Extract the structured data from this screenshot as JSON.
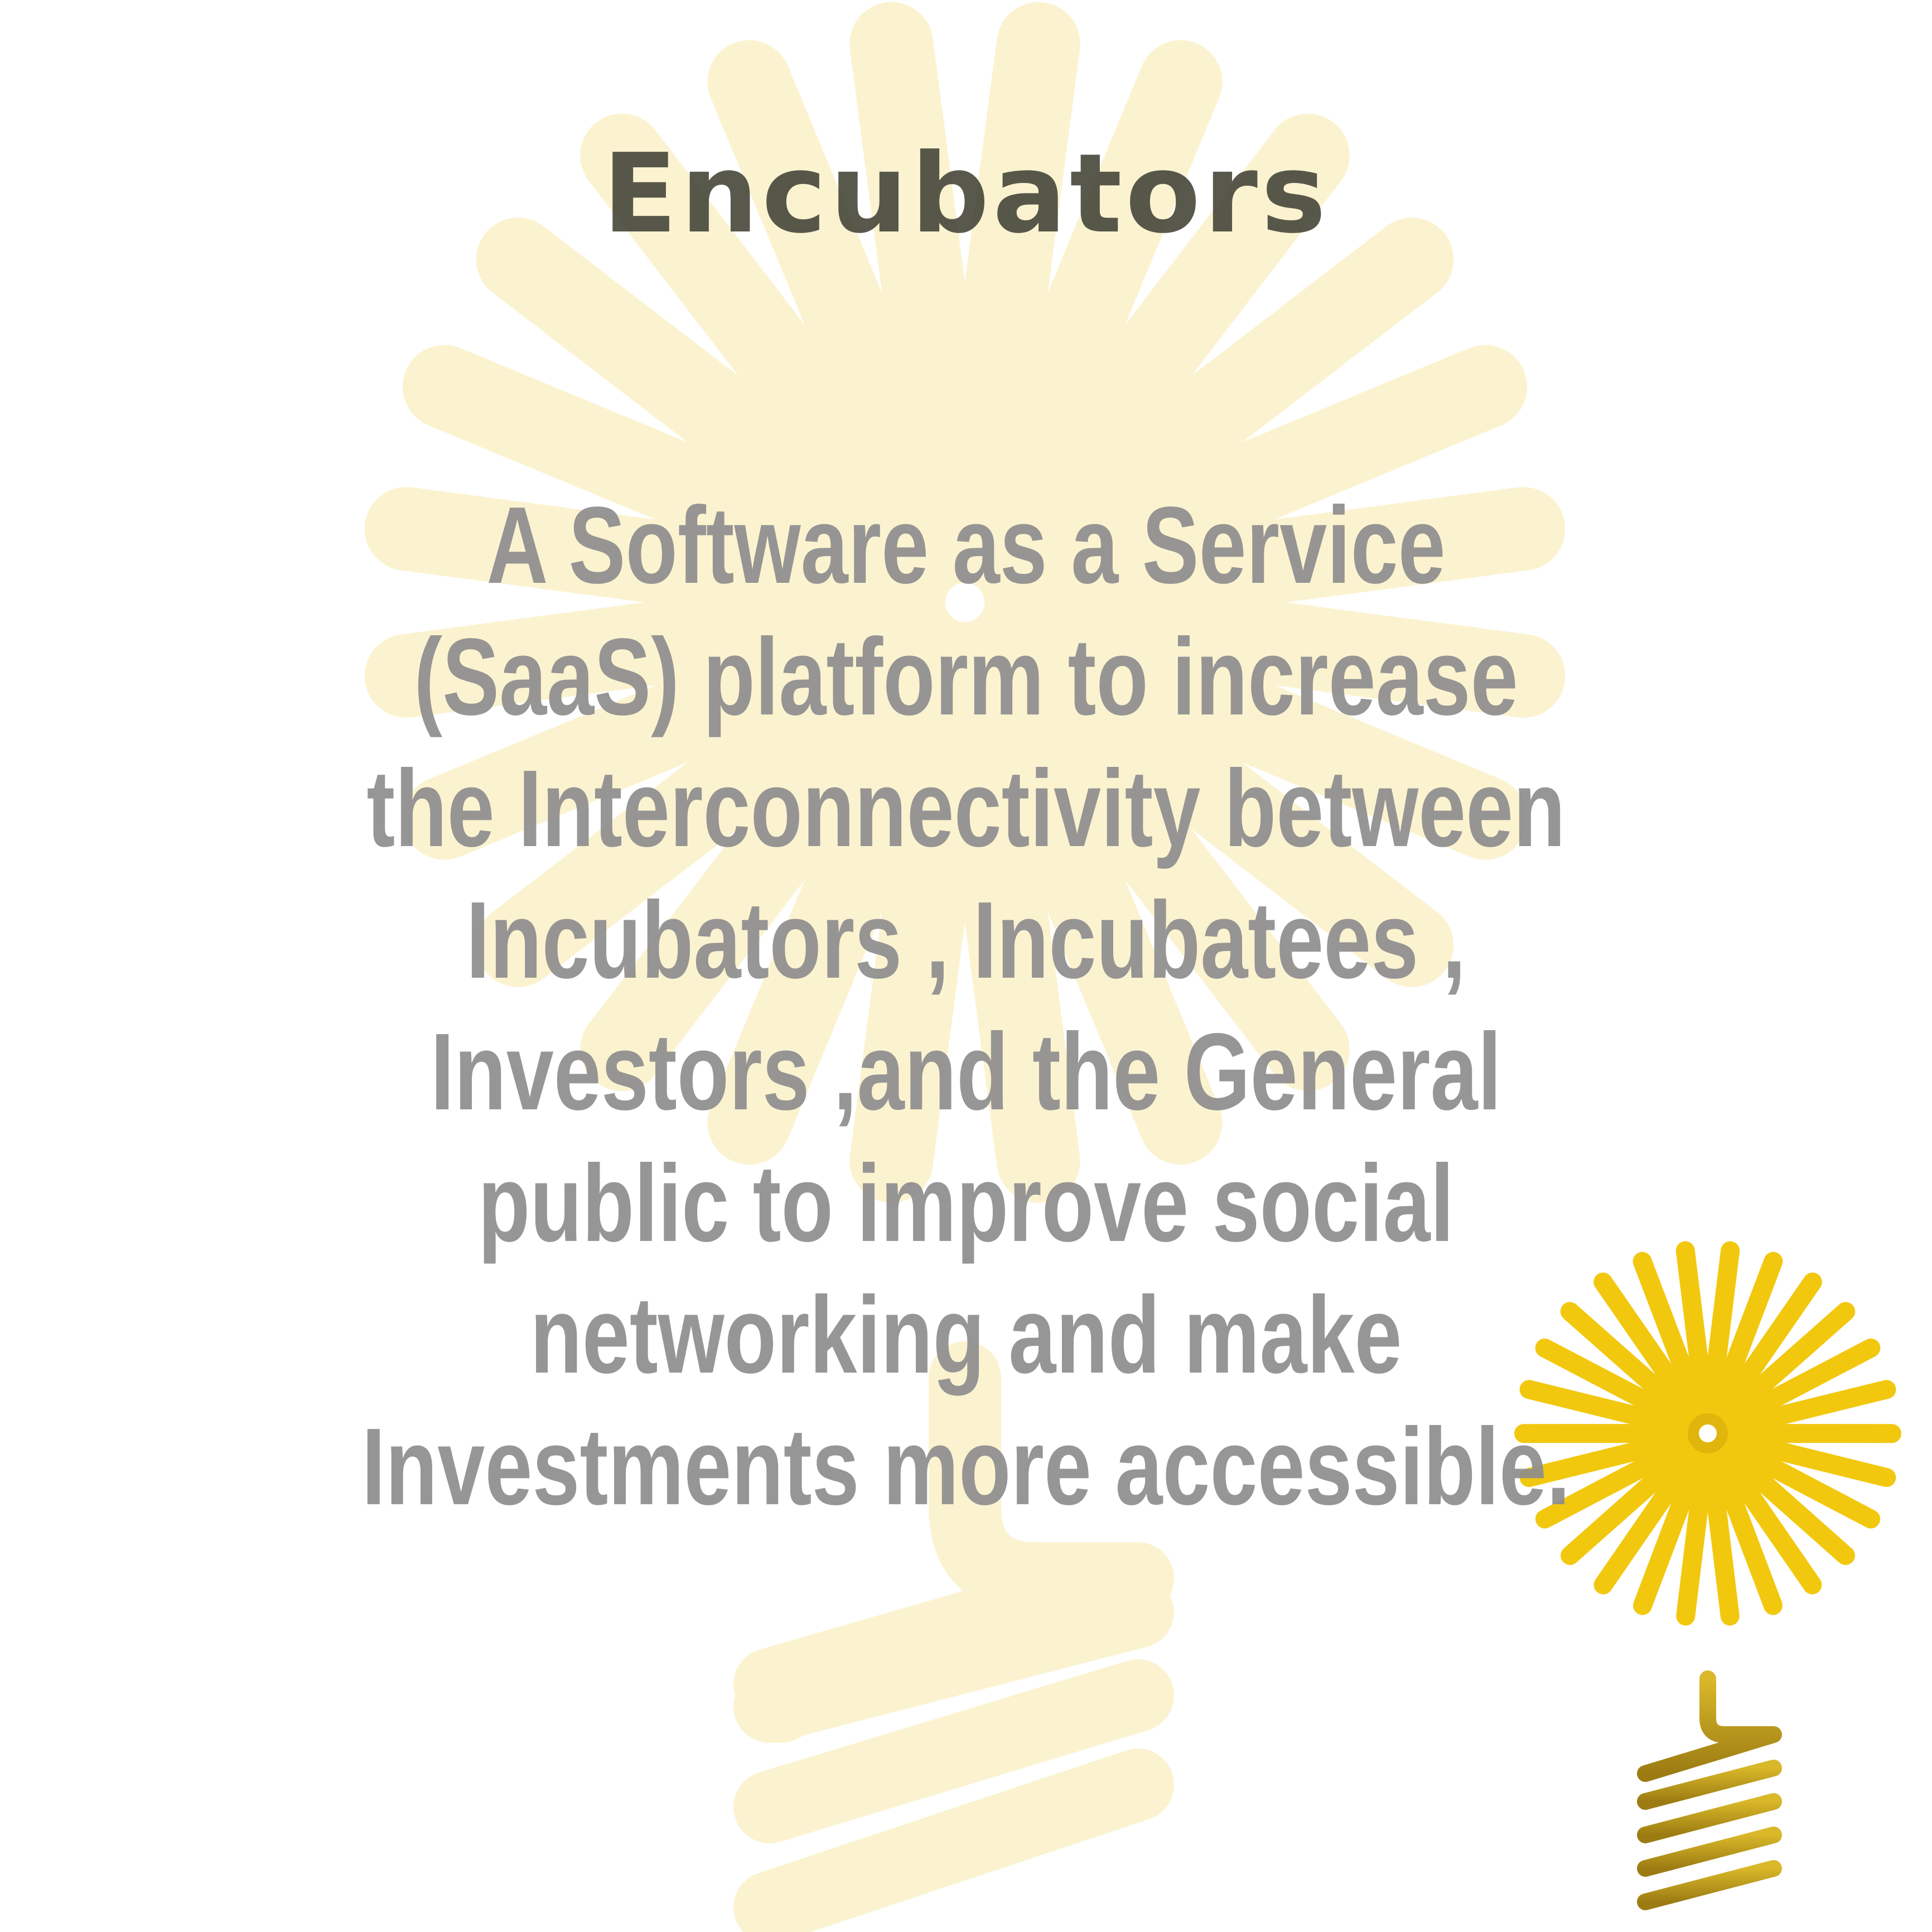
{
  "title": "Encubators",
  "description": "A Software as a Service (SaaS) platform to increase the Interconnectivity between Incubators , Incubatees , Investors ,and the General public to improve social networking and make Investments more accessible.",
  "colors": {
    "watermark": "#fbf3d0",
    "logo_rays": "#f2c80f",
    "logo_base": "#c9a227",
    "title": "#4a4a3e",
    "body": "#8e8e8e"
  },
  "icons": {
    "background": "lightbulb-watermark-icon",
    "corner": "lightbulb-logo-icon"
  }
}
